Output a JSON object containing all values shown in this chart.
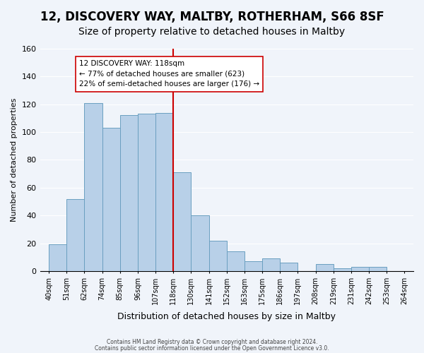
{
  "title": "12, DISCOVERY WAY, MALTBY, ROTHERHAM, S66 8SF",
  "subtitle": "Size of property relative to detached houses in Maltby",
  "xlabel": "Distribution of detached houses by size in Maltby",
  "ylabel": "Number of detached properties",
  "footer_line1": "Contains HM Land Registry data © Crown copyright and database right 2024.",
  "footer_line2": "Contains public sector information licensed under the Open Government Licence v3.0.",
  "bin_labels": [
    "40sqm",
    "51sqm",
    "62sqm",
    "74sqm",
    "85sqm",
    "96sqm",
    "107sqm",
    "118sqm",
    "130sqm",
    "141sqm",
    "152sqm",
    "163sqm",
    "175sqm",
    "186sqm",
    "197sqm",
    "208sqm",
    "219sqm",
    "231sqm",
    "242sqm",
    "253sqm",
    "264sqm"
  ],
  "bar_values": [
    19,
    52,
    121,
    103,
    112,
    113,
    114,
    71,
    40,
    22,
    14,
    7,
    9,
    6,
    0,
    5,
    2,
    3,
    3,
    0
  ],
  "bar_color": "#b8d0e8",
  "bar_edge_color": "#6a9fc0",
  "vline_x": 7,
  "vline_color": "#cc0000",
  "annotation_title": "12 DISCOVERY WAY: 118sqm",
  "annotation_line1": "← 77% of detached houses are smaller (623)",
  "annotation_line2": "22% of semi-detached houses are larger (176) →",
  "annotation_box_color": "#ffffff",
  "annotation_box_edge": "#cc0000",
  "ylim": [
    0,
    160
  ],
  "yticks": [
    0,
    20,
    40,
    60,
    80,
    100,
    120,
    140,
    160
  ],
  "bg_color": "#f0f4fa",
  "title_fontsize": 12,
  "subtitle_fontsize": 10
}
